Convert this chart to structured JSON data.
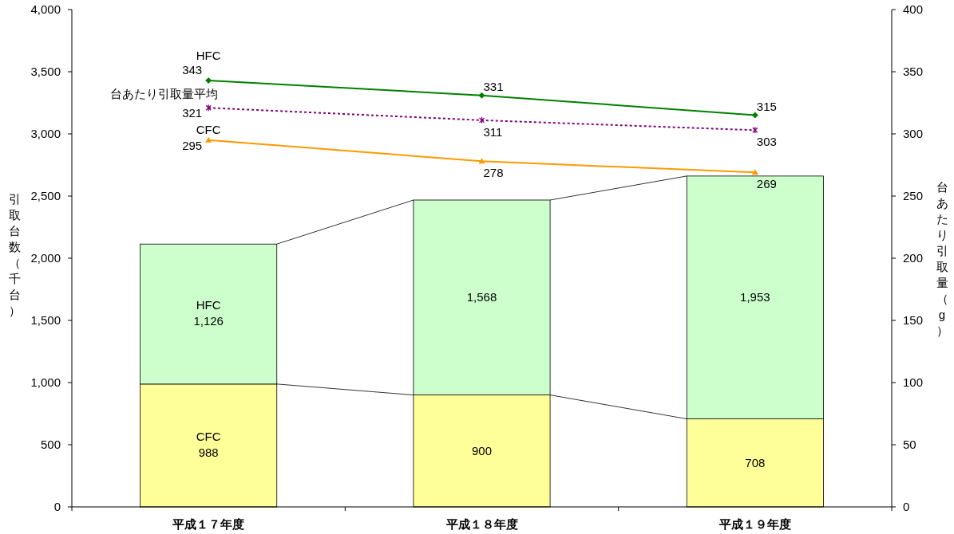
{
  "chart_data": {
    "type": "bar",
    "stacked": true,
    "ylabel": "引取台数（千台）",
    "y2label": "台あたり引取量（g）",
    "categories": [
      "平成１７年度",
      "平成１８年度",
      "平成１９年度"
    ],
    "series": [
      {
        "name": "CFC",
        "color": "#ffff99",
        "values": [
          988,
          900,
          708
        ],
        "value_labels": [
          "988",
          "900",
          "708"
        ]
      },
      {
        "name": "HFC",
        "color": "#ccffcc",
        "values": [
          1126,
          1568,
          1953
        ],
        "value_labels": [
          "1,126",
          "1,568",
          "1,953"
        ]
      },
      {
        "name": "HFC",
        "type": "line",
        "axis": "y2",
        "color": "#008000",
        "marker": "diamond",
        "line_style": "solid",
        "values": [
          343,
          331,
          315
        ]
      },
      {
        "name": "台あたり引取量平均",
        "type": "line",
        "axis": "y2",
        "color": "#800080",
        "marker": "cross",
        "line_style": "dotted",
        "values": [
          321,
          311,
          303
        ]
      },
      {
        "name": "CFC",
        "type": "line",
        "axis": "y2",
        "color": "#ff9900",
        "marker": "triangle",
        "line_style": "solid",
        "values": [
          295,
          278,
          269
        ]
      }
    ],
    "ylim": [
      0,
      4000
    ],
    "yticks": [
      0,
      500,
      {
        "value": 1000,
        "label": "1,000"
      },
      {
        "value": 1500,
        "label": "1,500"
      },
      {
        "value": 2000,
        "label": "2,000"
      },
      {
        "value": 2500,
        "label": "2,500"
      },
      {
        "value": 3000,
        "label": "3,000"
      },
      {
        "value": 3500,
        "label": "3,500"
      },
      {
        "value": 4000,
        "label": "4,000"
      }
    ],
    "y2lim": [
      0,
      400
    ],
    "y2ticks": [
      0,
      50,
      100,
      150,
      200,
      250,
      300,
      350,
      400
    ],
    "data_labels": true
  }
}
